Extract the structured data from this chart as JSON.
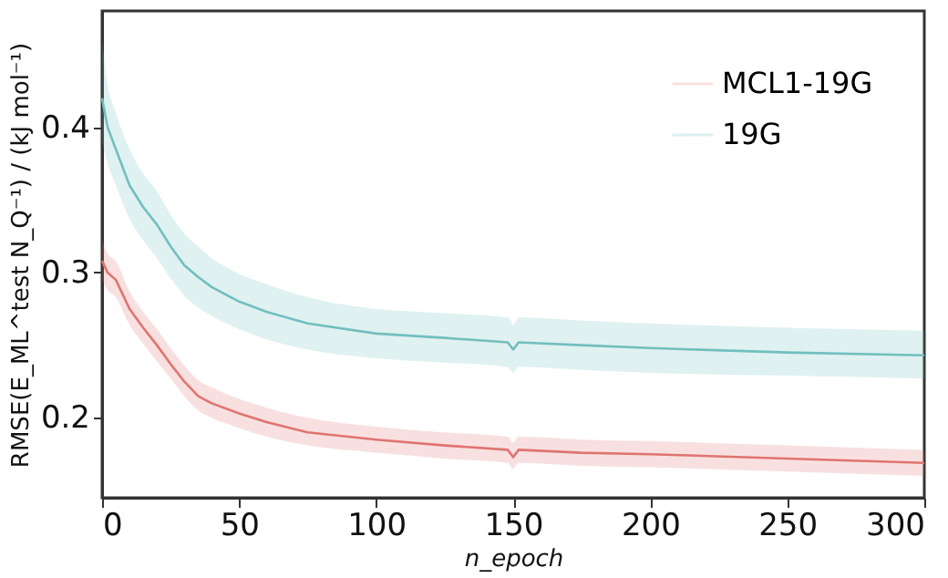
{
  "chart_data": {
    "type": "line",
    "xlabel": "n_epoch",
    "ylabel": "RMSE(E_ML^test N_Q⁻¹) / (kJ mol⁻¹)",
    "xlim": [
      0,
      300
    ],
    "xticks": [
      0,
      50,
      100,
      150,
      200,
      250,
      300
    ],
    "ylim": [
      0.145,
      0.48
    ],
    "yticks": [
      0.2,
      0.3,
      0.4
    ],
    "grid": false,
    "legend": "top right",
    "marker": "none",
    "line_style": "solid",
    "series": [
      {
        "name": "MCL1-19G",
        "color": "#e07470",
        "x": [
          0,
          2,
          5,
          10,
          15,
          20,
          25,
          30,
          35,
          40,
          50,
          60,
          75,
          100,
          125,
          148,
          150,
          152,
          175,
          200,
          250,
          300
        ],
        "values": [
          0.308,
          0.3,
          0.295,
          0.275,
          0.262,
          0.25,
          0.237,
          0.225,
          0.215,
          0.21,
          0.203,
          0.197,
          0.19,
          0.185,
          0.181,
          0.178,
          0.173,
          0.178,
          0.176,
          0.175,
          0.172,
          0.169
        ],
        "lower": [
          0.295,
          0.288,
          0.283,
          0.264,
          0.251,
          0.239,
          0.227,
          0.215,
          0.205,
          0.2,
          0.193,
          0.187,
          0.181,
          0.176,
          0.172,
          0.169,
          0.165,
          0.169,
          0.167,
          0.166,
          0.163,
          0.16
        ],
        "upper": [
          0.322,
          0.313,
          0.308,
          0.287,
          0.273,
          0.261,
          0.248,
          0.236,
          0.226,
          0.221,
          0.213,
          0.207,
          0.2,
          0.194,
          0.19,
          0.187,
          0.183,
          0.187,
          0.185,
          0.184,
          0.181,
          0.178
        ]
      },
      {
        "name": "19G",
        "color": "#72bfbf",
        "x": [
          0,
          2,
          5,
          10,
          15,
          20,
          25,
          30,
          35,
          40,
          50,
          60,
          75,
          100,
          125,
          148,
          150,
          152,
          175,
          200,
          250,
          300
        ],
        "values": [
          0.42,
          0.4,
          0.385,
          0.36,
          0.345,
          0.333,
          0.318,
          0.305,
          0.297,
          0.29,
          0.28,
          0.273,
          0.265,
          0.258,
          0.255,
          0.252,
          0.247,
          0.252,
          0.25,
          0.248,
          0.245,
          0.243
        ],
        "lower": [
          0.39,
          0.375,
          0.36,
          0.337,
          0.322,
          0.31,
          0.296,
          0.284,
          0.276,
          0.27,
          0.261,
          0.254,
          0.247,
          0.241,
          0.238,
          0.235,
          0.231,
          0.235,
          0.233,
          0.231,
          0.229,
          0.227
        ],
        "upper": [
          0.46,
          0.43,
          0.41,
          0.385,
          0.368,
          0.356,
          0.34,
          0.327,
          0.318,
          0.31,
          0.299,
          0.292,
          0.283,
          0.275,
          0.272,
          0.269,
          0.264,
          0.269,
          0.267,
          0.265,
          0.262,
          0.26
        ]
      }
    ]
  }
}
